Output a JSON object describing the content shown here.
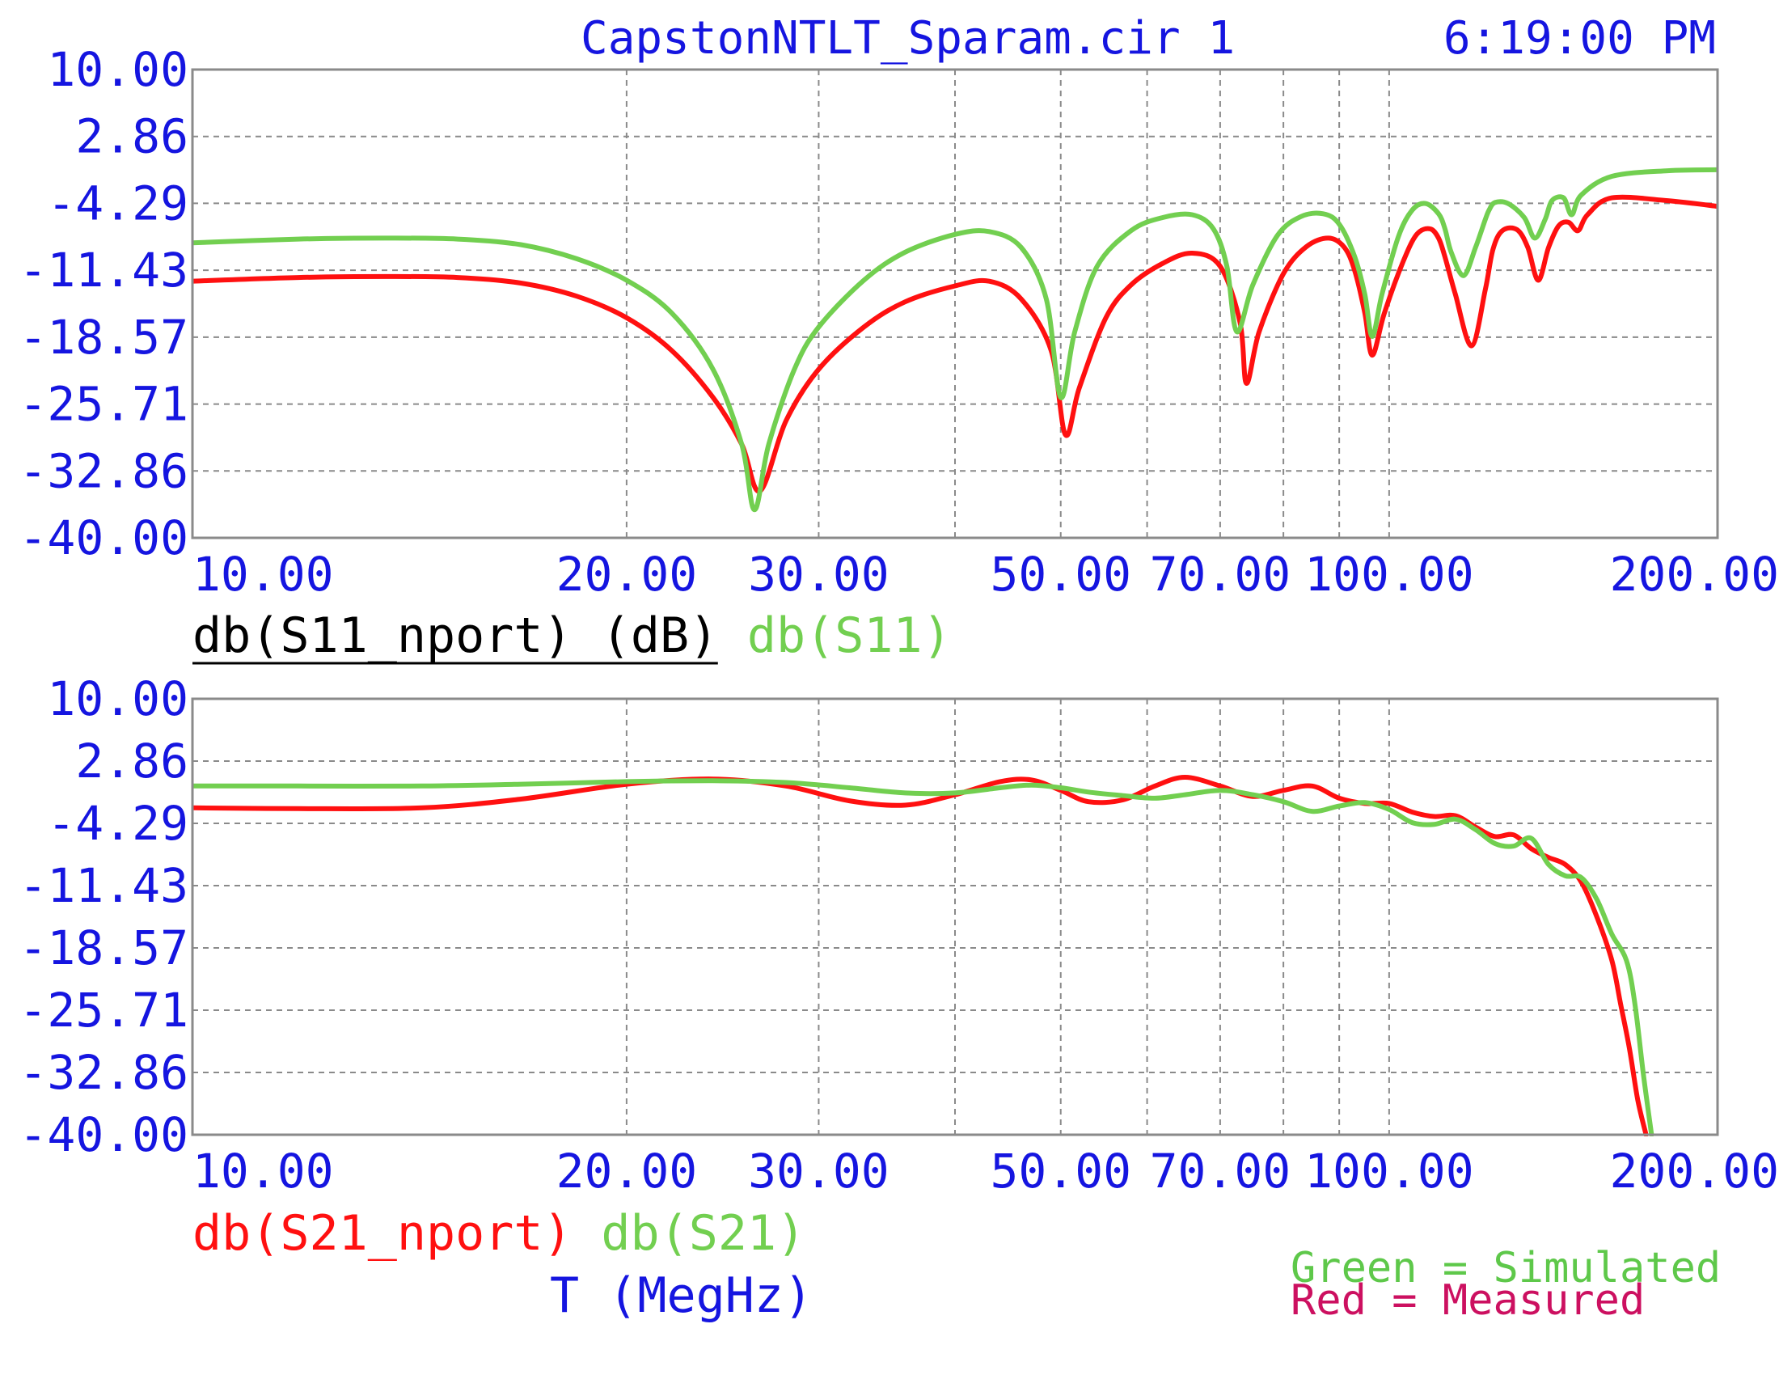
{
  "header": {
    "title": "CapstonNTLT_Sparam.cir 1",
    "time": "6:19:00 PM"
  },
  "colors": {
    "axis_text": "#1515e0",
    "measured": "#ff1010",
    "simulated": "#72cf50",
    "grid": "#8a8a8a",
    "frame": "#8a8a8a",
    "legend_black": "#000000",
    "note_green": "#5ec84a",
    "note_red": "#cc1060"
  },
  "x_axis_label": "T (MegHz)",
  "notes": {
    "simulated": "Green = Simulated",
    "measured": "Red = Measured"
  },
  "chart_data": [
    {
      "type": "line",
      "x_scale": "log",
      "xlim": [
        8,
        200
      ],
      "ylim": [
        -40,
        10
      ],
      "grid": true,
      "y_ticks": [
        "10.00",
        "2.86",
        "-4.29",
        "-11.43",
        "-18.57",
        "-25.71",
        "-32.86",
        "-40.00"
      ],
      "x_ticks": [
        {
          "value": 10,
          "label": "10.00"
        },
        {
          "value": 20,
          "label": "20.00"
        },
        {
          "value": 30,
          "label": "30.00"
        },
        {
          "value": 50,
          "label": "50.00"
        },
        {
          "value": 70,
          "label": "70.00"
        },
        {
          "value": 100,
          "label": "100.00"
        },
        {
          "value": 200,
          "label": "200.00"
        }
      ],
      "x_grid": [
        20,
        30,
        40,
        50,
        60,
        70,
        80,
        90,
        100
      ],
      "legend": [
        {
          "label": "db(S11_nport) (dB)",
          "color_key": "legend_black",
          "underline": true
        },
        {
          "label": "db(S11)",
          "color_key": "simulated",
          "underline": false
        }
      ],
      "series": [
        {
          "name": "db(S11_nport)",
          "color_key": "measured",
          "x": [
            8,
            10,
            12,
            14,
            16,
            18,
            20,
            22,
            24,
            25.5,
            26.5,
            28,
            30,
            33,
            36,
            40,
            43,
            46,
            49,
            50.5,
            52,
            55,
            58,
            62,
            66,
            70,
            73,
            74,
            76,
            80,
            84,
            88,
            91,
            93,
            95,
            96.5,
            99,
            103,
            106,
            109,
            111,
            112.5,
            115,
            119,
            122.5,
            124.5,
            127,
            131,
            134,
            137,
            140,
            143,
            146,
            149,
            152,
            160,
            180,
            200
          ],
          "y": [
            -12.6,
            -12.2,
            -12.1,
            -12.2,
            -12.8,
            -14.2,
            -16.5,
            -20.0,
            -25.0,
            -30.0,
            -35.0,
            -27.5,
            -22.0,
            -17.5,
            -14.8,
            -13.1,
            -12.6,
            -14.5,
            -20.0,
            -29.0,
            -24.0,
            -16.5,
            -13.0,
            -10.7,
            -9.6,
            -11.0,
            -17.0,
            -23.5,
            -18.0,
            -11.8,
            -8.9,
            -8.0,
            -9.0,
            -11.5,
            -16.0,
            -20.5,
            -16.0,
            -10.5,
            -7.6,
            -7.0,
            -8.0,
            -10.0,
            -14.0,
            -19.5,
            -13.5,
            -9.2,
            -7.2,
            -7.1,
            -9.0,
            -12.5,
            -9.0,
            -6.7,
            -6.3,
            -7.2,
            -5.5,
            -3.7,
            -4.0,
            -4.6
          ]
        },
        {
          "name": "db(S11)",
          "color_key": "simulated",
          "x": [
            8,
            10,
            12,
            14,
            16,
            18,
            20,
            22,
            24,
            25.5,
            26.2,
            27,
            28.5,
            30,
            33,
            36,
            40,
            43,
            46,
            48.5,
            50,
            51.5,
            54,
            58,
            62,
            66,
            69,
            71,
            72.5,
            75,
            79,
            83,
            87,
            90,
            93,
            95,
            96.5,
            98.5,
            102,
            105,
            108,
            111,
            112.5,
            114,
            117,
            120,
            122.5,
            123.5,
            125,
            128.5,
            133,
            136,
            139,
            141,
            144.5,
            147,
            150,
            160,
            180,
            200
          ],
          "y": [
            -8.5,
            -8.1,
            -8.0,
            -8.1,
            -8.7,
            -10.2,
            -12.5,
            -16.0,
            -22.0,
            -30.0,
            -37.0,
            -30.0,
            -22.0,
            -17.5,
            -12.5,
            -9.5,
            -7.6,
            -7.3,
            -9.0,
            -14.5,
            -25.0,
            -18.0,
            -11.0,
            -7.2,
            -5.8,
            -5.5,
            -7.0,
            -11.0,
            -18.0,
            -13.0,
            -7.7,
            -5.7,
            -5.4,
            -6.5,
            -10.0,
            -14.0,
            -18.5,
            -14.0,
            -7.8,
            -5.0,
            -4.3,
            -5.4,
            -7.0,
            -9.5,
            -12.0,
            -9.0,
            -6.0,
            -5.0,
            -4.2,
            -4.3,
            -5.8,
            -8.0,
            -6.0,
            -4.0,
            -3.7,
            -5.5,
            -3.4,
            -1.4,
            -0.8,
            -0.7
          ]
        }
      ]
    },
    {
      "type": "line",
      "x_scale": "log",
      "xlim": [
        8,
        200
      ],
      "ylim": [
        -40,
        10
      ],
      "grid": true,
      "y_ticks": [
        "10.00",
        "2.86",
        "-4.29",
        "-11.43",
        "-18.57",
        "-25.71",
        "-32.86",
        "-40.00"
      ],
      "x_ticks": [
        {
          "value": 10,
          "label": "10.00"
        },
        {
          "value": 20,
          "label": "20.00"
        },
        {
          "value": 30,
          "label": "30.00"
        },
        {
          "value": 50,
          "label": "50.00"
        },
        {
          "value": 70,
          "label": "70.00"
        },
        {
          "value": 100,
          "label": "100.00"
        },
        {
          "value": 200,
          "label": "200.00"
        }
      ],
      "x_grid": [
        20,
        30,
        40,
        50,
        60,
        70,
        80,
        90,
        100
      ],
      "legend": [
        {
          "label": "db(S21_nport)",
          "color_key": "measured",
          "underline": false
        },
        {
          "label": "db(S21)",
          "color_key": "simulated",
          "underline": false
        }
      ],
      "series": [
        {
          "name": "db(S21_nport)",
          "color_key": "measured",
          "x": [
            8,
            10,
            13,
            16,
            20,
            24,
            28,
            32,
            36,
            40,
            44,
            47,
            50,
            53,
            57,
            61,
            65,
            70,
            75,
            80,
            85,
            90,
            95,
            100,
            105,
            110,
            115,
            120,
            125,
            130,
            135,
            140,
            145,
            150,
            155,
            160,
            163,
            166,
            169,
            172
          ],
          "y": [
            -2.5,
            -2.6,
            -2.5,
            -1.5,
            0.2,
            0.8,
            0.0,
            -1.7,
            -2.2,
            -1.0,
            0.5,
            0.7,
            -0.5,
            -1.8,
            -1.6,
            0.0,
            1.0,
            0.0,
            -1.2,
            -0.5,
            0.0,
            -1.4,
            -2.0,
            -2.0,
            -3.0,
            -3.5,
            -3.4,
            -4.7,
            -5.8,
            -5.6,
            -7.2,
            -8.2,
            -9.0,
            -11.0,
            -15.0,
            -20.0,
            -25.0,
            -30.0,
            -36.0,
            -40.0
          ]
        },
        {
          "name": "db(S21)",
          "color_key": "simulated",
          "x": [
            8,
            10,
            13,
            16,
            20,
            24,
            28,
            32,
            36,
            40,
            44,
            47,
            50,
            53,
            57,
            61,
            65,
            70,
            75,
            80,
            85,
            90,
            95,
            100,
            105,
            110,
            115,
            120,
            125,
            130,
            135,
            140,
            145,
            150,
            155,
            160,
            165,
            168,
            171,
            174
          ],
          "y": [
            0.0,
            0.0,
            0.0,
            0.2,
            0.5,
            0.6,
            0.4,
            -0.2,
            -0.8,
            -0.8,
            -0.2,
            0.1,
            -0.2,
            -0.7,
            -1.1,
            -1.4,
            -1.0,
            -0.5,
            -1.0,
            -1.8,
            -2.9,
            -2.3,
            -1.9,
            -2.7,
            -4.2,
            -4.4,
            -3.8,
            -5.0,
            -6.6,
            -6.9,
            -6.0,
            -9.0,
            -10.3,
            -10.5,
            -13.0,
            -17.0,
            -20.0,
            -25.0,
            -33.0,
            -40.0
          ]
        }
      ]
    }
  ]
}
